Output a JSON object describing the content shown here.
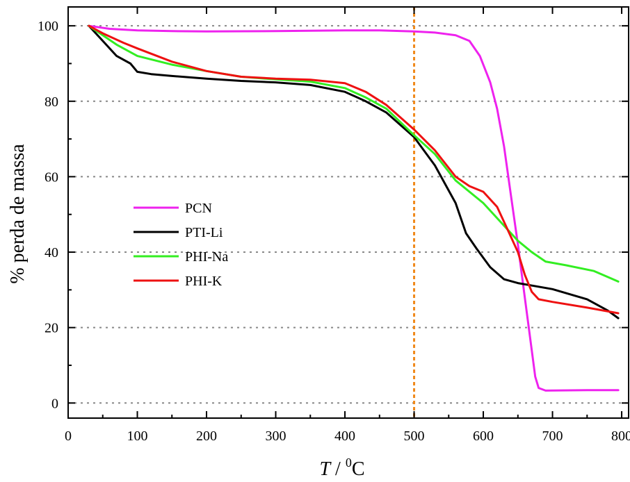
{
  "chart_data": {
    "type": "line",
    "xlabel": {
      "var": "T",
      "sep": " / ",
      "sup": "0",
      "unit": "C"
    },
    "ylabel": "% perda de massa",
    "xlim": [
      0,
      810
    ],
    "ylim": [
      -4,
      105
    ],
    "xticks": [
      0,
      100,
      200,
      300,
      400,
      500,
      600,
      700,
      800
    ],
    "yticks": [
      0,
      20,
      40,
      60,
      80,
      100
    ],
    "grid": "horizontal dotted",
    "legend_position": "center-left",
    "annotations": [
      {
        "type": "vertical-dotted-line",
        "x": 500,
        "color": "#f08a1c"
      }
    ],
    "series": [
      {
        "name": "PCN",
        "color": "#ee22ee",
        "points": [
          [
            30,
            100
          ],
          [
            60,
            99.2
          ],
          [
            100,
            98.8
          ],
          [
            150,
            98.6
          ],
          [
            200,
            98.5
          ],
          [
            300,
            98.6
          ],
          [
            400,
            98.8
          ],
          [
            450,
            98.8
          ],
          [
            500,
            98.5
          ],
          [
            530,
            98.2
          ],
          [
            560,
            97.5
          ],
          [
            580,
            96
          ],
          [
            595,
            92
          ],
          [
            610,
            85
          ],
          [
            620,
            78
          ],
          [
            630,
            68
          ],
          [
            640,
            55
          ],
          [
            650,
            42
          ],
          [
            660,
            28
          ],
          [
            670,
            14
          ],
          [
            675,
            7
          ],
          [
            680,
            4
          ],
          [
            690,
            3.3
          ],
          [
            750,
            3.4
          ],
          [
            795,
            3.4
          ]
        ]
      },
      {
        "name": "PTI-Li",
        "color": "#000000",
        "points": [
          [
            30,
            100
          ],
          [
            50,
            96
          ],
          [
            70,
            92
          ],
          [
            90,
            90
          ],
          [
            100,
            87.8
          ],
          [
            120,
            87.2
          ],
          [
            150,
            86.7
          ],
          [
            200,
            86
          ],
          [
            250,
            85.4
          ],
          [
            300,
            85
          ],
          [
            350,
            84.3
          ],
          [
            400,
            82.5
          ],
          [
            430,
            80
          ],
          [
            460,
            77
          ],
          [
            500,
            70.5
          ],
          [
            530,
            63
          ],
          [
            560,
            53
          ],
          [
            575,
            45
          ],
          [
            590,
            41
          ],
          [
            610,
            36
          ],
          [
            630,
            32.8
          ],
          [
            650,
            31.8
          ],
          [
            700,
            30.2
          ],
          [
            750,
            27.5
          ],
          [
            780,
            24.5
          ],
          [
            795,
            22.5
          ]
        ]
      },
      {
        "name": "PHI-Na",
        "color": "#33ee22",
        "points": [
          [
            30,
            100
          ],
          [
            50,
            97.5
          ],
          [
            70,
            95
          ],
          [
            100,
            92
          ],
          [
            150,
            89.7
          ],
          [
            200,
            88
          ],
          [
            250,
            86.5
          ],
          [
            300,
            85.8
          ],
          [
            350,
            85.2
          ],
          [
            400,
            83.5
          ],
          [
            430,
            81
          ],
          [
            460,
            78
          ],
          [
            500,
            71
          ],
          [
            530,
            66
          ],
          [
            560,
            59
          ],
          [
            600,
            53
          ],
          [
            630,
            47
          ],
          [
            650,
            43
          ],
          [
            670,
            40
          ],
          [
            690,
            37.5
          ],
          [
            720,
            36.5
          ],
          [
            760,
            35
          ],
          [
            785,
            33
          ],
          [
            795,
            32.2
          ]
        ]
      },
      {
        "name": "PHI-K",
        "color": "#ee1111",
        "points": [
          [
            30,
            100
          ],
          [
            50,
            98
          ],
          [
            80,
            95.5
          ],
          [
            100,
            94
          ],
          [
            150,
            90.5
          ],
          [
            200,
            88
          ],
          [
            250,
            86.5
          ],
          [
            300,
            86
          ],
          [
            350,
            85.7
          ],
          [
            400,
            84.8
          ],
          [
            430,
            82.5
          ],
          [
            460,
            79
          ],
          [
            500,
            72.5
          ],
          [
            530,
            67
          ],
          [
            560,
            60
          ],
          [
            580,
            57.5
          ],
          [
            600,
            56
          ],
          [
            620,
            52
          ],
          [
            635,
            46
          ],
          [
            650,
            40
          ],
          [
            660,
            34
          ],
          [
            670,
            29.5
          ],
          [
            680,
            27.5
          ],
          [
            700,
            26.8
          ],
          [
            750,
            25.3
          ],
          [
            795,
            23.8
          ]
        ]
      }
    ]
  }
}
